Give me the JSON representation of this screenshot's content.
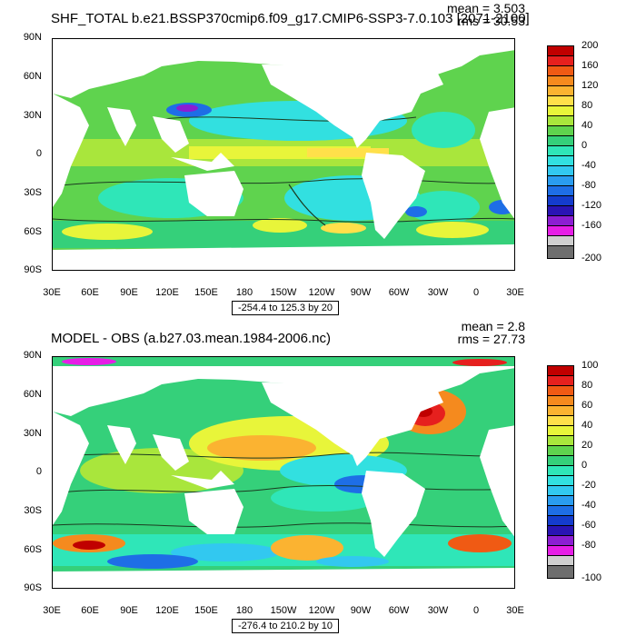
{
  "panels": [
    {
      "title": "SHF_TOTAL b.e21.BSSP370cmip6.f09_g17.CMIP6-SSP3-7.0.103 [2071-2100]",
      "mean": "mean = 3.503",
      "rms": "rms = 30.53",
      "y_ticks": [
        "90N",
        "60N",
        "30N",
        "0",
        "30S",
        "60S",
        "90S"
      ],
      "x_ticks": [
        "30E",
        "60E",
        "90E",
        "120E",
        "150E",
        "180",
        "150W",
        "120W",
        "90W",
        "60W",
        "30W",
        "0",
        "30E"
      ],
      "range_label": "-254.4 to 125.3 by 20",
      "colorbar": {
        "labels": [
          "200",
          "160",
          "120",
          "80",
          "40",
          "0",
          "-40",
          "-80",
          "-120",
          "-160",
          "-200"
        ],
        "colors": [
          "#c00000",
          "#e6201e",
          "#f05a14",
          "#f58a1e",
          "#fbb331",
          "#ffe04a",
          "#e8f53a",
          "#a9e63c",
          "#5fd34e",
          "#35d07a",
          "#2fe6b8",
          "#32e0e0",
          "#32c8f0",
          "#2a9cf0",
          "#1e6ee6",
          "#143ccd",
          "#2a14b4",
          "#8c1ed2",
          "#e61ee6",
          "#cfcfcf",
          "#6e6e6e"
        ]
      }
    },
    {
      "title": "MODEL - OBS (a.b27.03.mean.1984-2006.nc)",
      "mean": "mean = 2.8",
      "rms": "rms = 27.73",
      "y_ticks": [
        "90N",
        "60N",
        "30N",
        "0",
        "30S",
        "60S",
        "90S"
      ],
      "x_ticks": [
        "30E",
        "60E",
        "90E",
        "120E",
        "150E",
        "180",
        "150W",
        "120W",
        "90W",
        "60W",
        "30W",
        "0",
        "30E"
      ],
      "range_label": "-276.4 to 210.2 by 10",
      "colorbar": {
        "labels": [
          "100",
          "80",
          "60",
          "40",
          "20",
          "0",
          "-20",
          "-40",
          "-60",
          "-80",
          "-100"
        ],
        "colors": [
          "#c00000",
          "#e6201e",
          "#f05a14",
          "#f58a1e",
          "#fbb331",
          "#ffe04a",
          "#e8f53a",
          "#a9e63c",
          "#5fd34e",
          "#35d07a",
          "#2fe6b8",
          "#32e0e0",
          "#32c8f0",
          "#2a9cf0",
          "#1e6ee6",
          "#143ccd",
          "#2a14b4",
          "#8c1ed2",
          "#e61ee6",
          "#cfcfcf",
          "#6e6e6e"
        ]
      }
    }
  ]
}
